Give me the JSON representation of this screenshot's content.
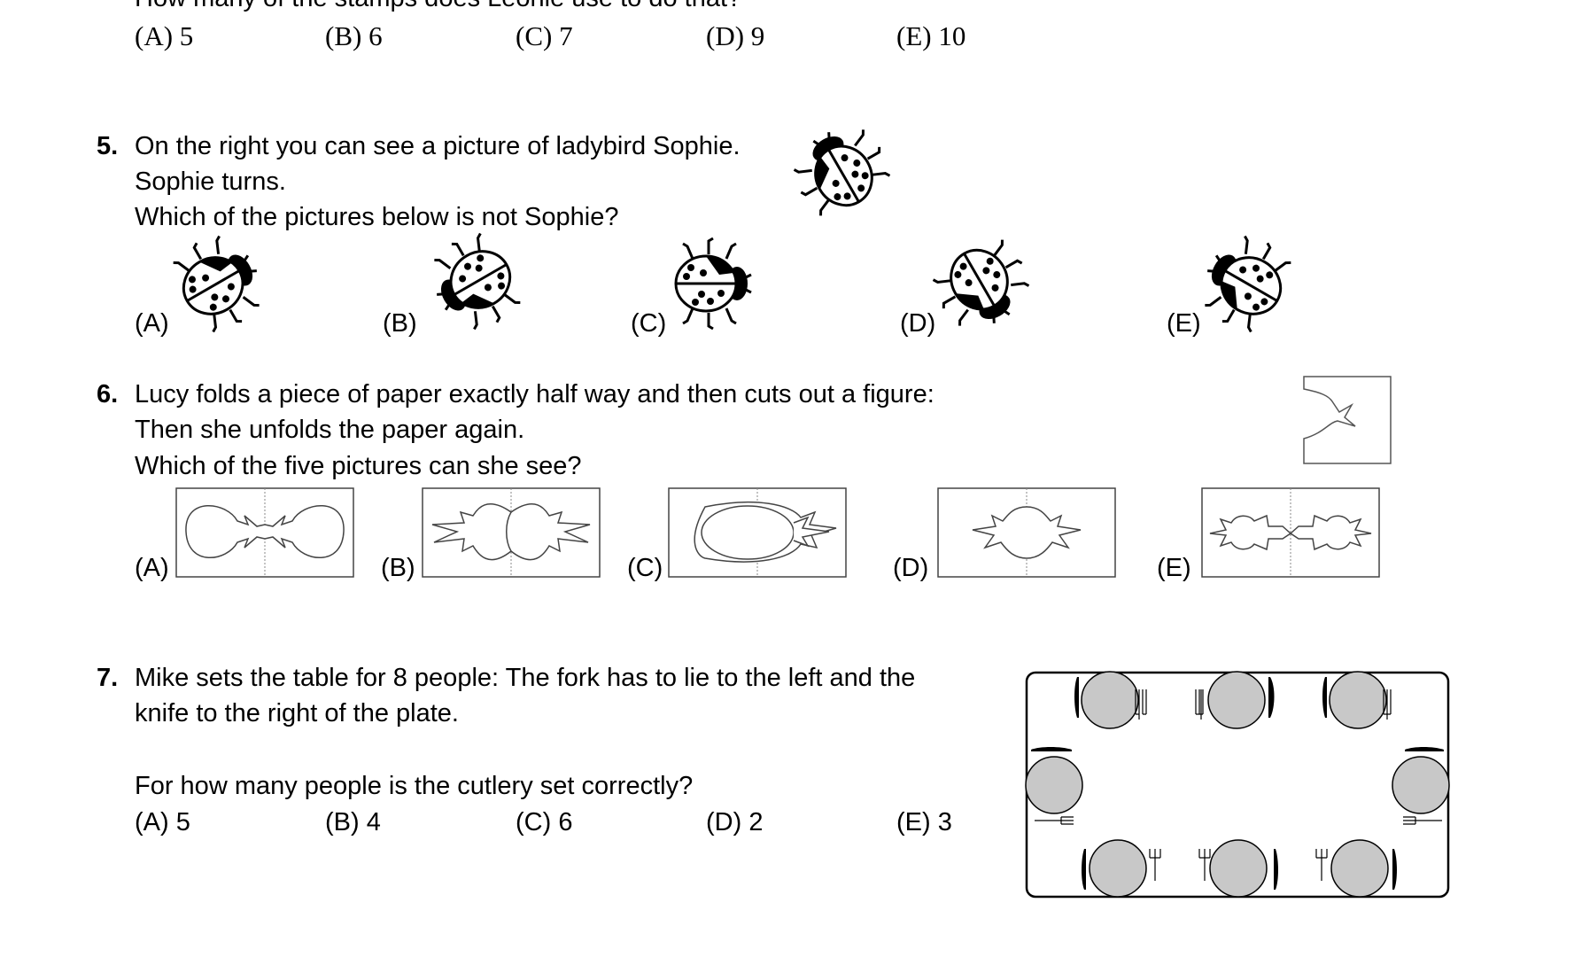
{
  "q4": {
    "cut_text": "How many of the stamps does Leonie use to do that?",
    "options": [
      "(A) 5",
      "(B) 6",
      "(C) 7",
      "(D) 9",
      "(E) 10"
    ]
  },
  "q5": {
    "number": "5.",
    "lines": [
      "On the right you can see a picture of ladybird Sophie.",
      "Sophie turns.",
      "Which of the pictures below is not Sophie?"
    ],
    "options": [
      "(A)",
      "(B)",
      "(C)",
      "(D)",
      "(E)"
    ]
  },
  "q6": {
    "number": "6.",
    "lines": [
      "Lucy folds a piece of paper exactly half way and then cuts out a figure:",
      "Then she unfolds the paper again.",
      "Which of the five pictures can she see?"
    ],
    "options": [
      "(A)",
      "(B)",
      "(C)",
      "(D)",
      "(E)"
    ]
  },
  "q7": {
    "number": "7.",
    "lines": [
      "Mike sets the table for 8 people: The fork has to lie to the left and the",
      "knife to the right of the plate."
    ],
    "question": "For how many people is the cutlery set correctly?",
    "options": [
      "(A) 5",
      "(B) 4",
      "(C) 6",
      "(D) 2",
      "(E) 3"
    ]
  }
}
